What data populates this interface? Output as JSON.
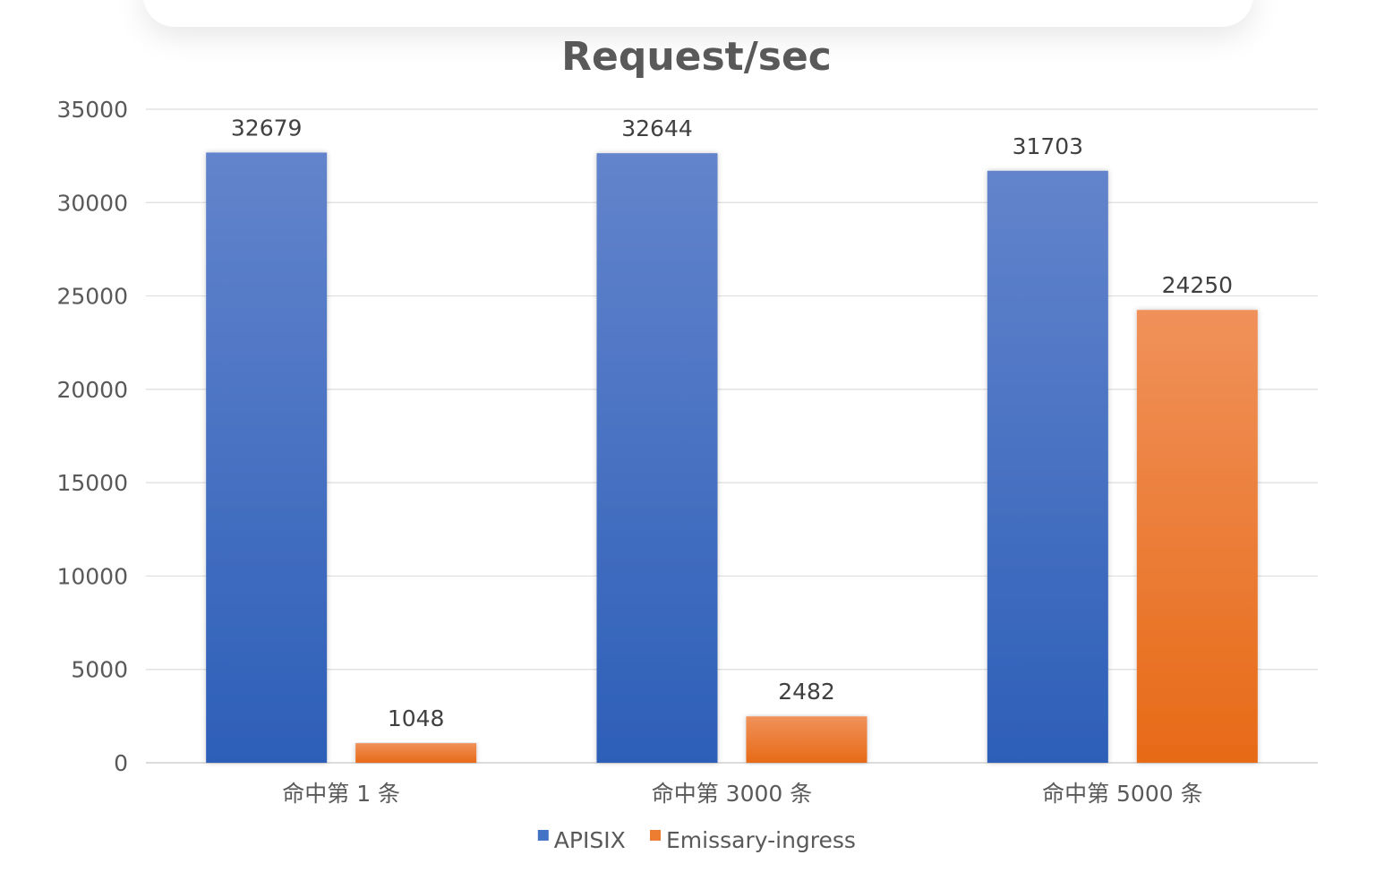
{
  "chart_data": {
    "type": "bar",
    "title": "Request/sec",
    "xlabel": "",
    "ylabel": "",
    "categories": [
      "命中第 1 条",
      "命中第 3000 条",
      "命中第 5000 条"
    ],
    "series": [
      {
        "name": "APISIX",
        "values": [
          32679,
          32644,
          31703
        ],
        "color": "#4472c4"
      },
      {
        "name": "Emissary-ingress",
        "values": [
          1048,
          2482,
          24250
        ],
        "color": "#ed7d31"
      }
    ],
    "ylim": [
      0,
      35000
    ],
    "yticks": [
      0,
      5000,
      10000,
      15000,
      20000,
      25000,
      30000,
      35000
    ],
    "ytick_labels": [
      "0",
      "5000",
      "10000",
      "15000",
      "20000",
      "25000",
      "30000",
      "35000"
    ],
    "data_labels": [
      "32679",
      "32644",
      "31703",
      "1048",
      "2482",
      "24250"
    ],
    "grid": true,
    "legend_position": "bottom"
  }
}
